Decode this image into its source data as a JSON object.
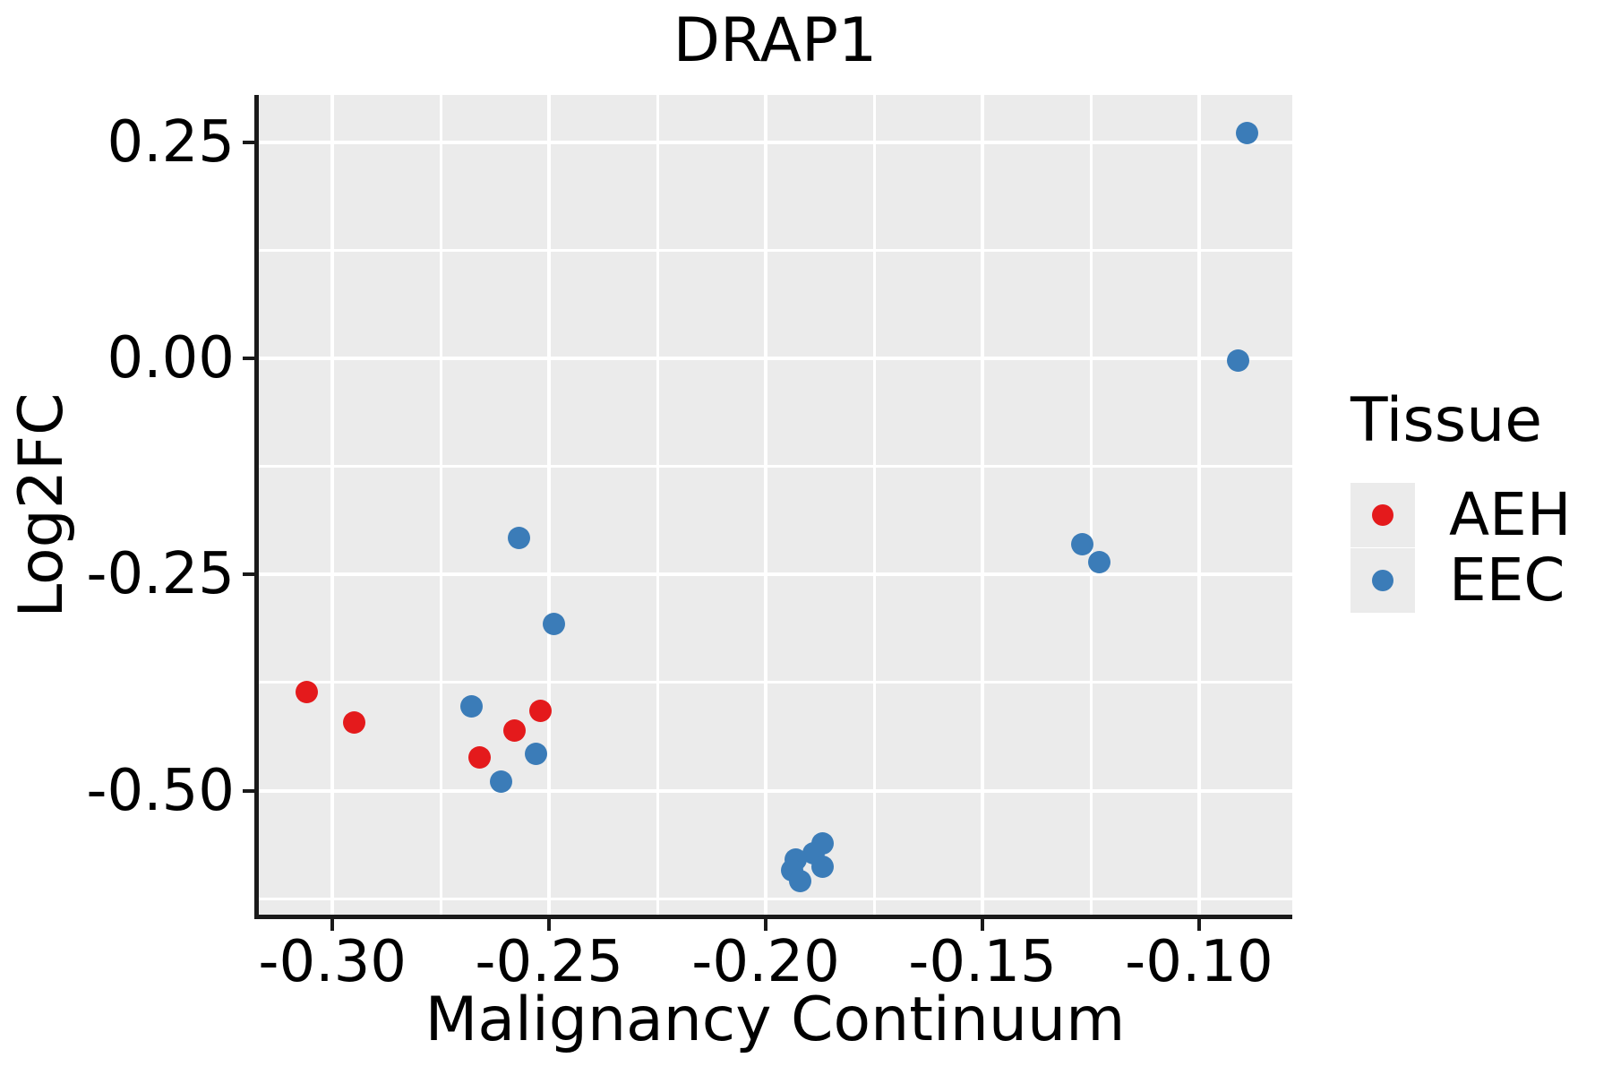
{
  "title": "DRAP1",
  "chart_data": {
    "type": "scatter",
    "title": "DRAP1",
    "xlabel": "Malignancy Continuum",
    "ylabel": "Log2FC",
    "xlim": [
      -0.3172,
      -0.0785
    ],
    "ylim": [
      -0.6444,
      0.3046
    ],
    "grid": "on",
    "panel_background": "#EBEBEB",
    "gridline_color": "#FFFFFF",
    "x_ticks": [
      {
        "value": -0.3,
        "label": "-0.30"
      },
      {
        "value": -0.25,
        "label": "-0.25"
      },
      {
        "value": -0.2,
        "label": "-0.20"
      },
      {
        "value": -0.15,
        "label": "-0.15"
      },
      {
        "value": -0.1,
        "label": "-0.10"
      }
    ],
    "y_ticks": [
      {
        "value": 0.25,
        "label": "0.25"
      },
      {
        "value": 0.0,
        "label": "0.00"
      },
      {
        "value": -0.25,
        "label": "-0.25"
      },
      {
        "value": -0.5,
        "label": "-0.50"
      }
    ],
    "x_minor_gridlines": [
      -0.275,
      -0.225,
      -0.175,
      -0.125
    ],
    "y_minor_gridlines": [
      0.125,
      -0.125,
      -0.375,
      -0.625
    ],
    "legend": {
      "title": "Tissue",
      "position": "right"
    },
    "series": [
      {
        "name": "AEH",
        "color": "#E41A1C",
        "points": [
          {
            "x": -0.306,
            "y": -0.386
          },
          {
            "x": -0.295,
            "y": -0.421
          },
          {
            "x": -0.266,
            "y": -0.462
          },
          {
            "x": -0.258,
            "y": -0.43
          },
          {
            "x": -0.252,
            "y": -0.408
          }
        ]
      },
      {
        "name": "EEC",
        "color": "#3B7CB8",
        "points": [
          {
            "x": -0.257,
            "y": -0.208
          },
          {
            "x": -0.249,
            "y": -0.307
          },
          {
            "x": -0.268,
            "y": -0.403
          },
          {
            "x": -0.253,
            "y": -0.457
          },
          {
            "x": -0.261,
            "y": -0.49
          },
          {
            "x": -0.187,
            "y": -0.561
          },
          {
            "x": -0.189,
            "y": -0.572
          },
          {
            "x": -0.193,
            "y": -0.58
          },
          {
            "x": -0.194,
            "y": -0.592
          },
          {
            "x": -0.192,
            "y": -0.604
          },
          {
            "x": -0.187,
            "y": -0.588
          },
          {
            "x": -0.127,
            "y": -0.215
          },
          {
            "x": -0.123,
            "y": -0.236
          },
          {
            "x": -0.091,
            "y": -0.003
          },
          {
            "x": -0.089,
            "y": 0.261
          }
        ]
      }
    ]
  }
}
